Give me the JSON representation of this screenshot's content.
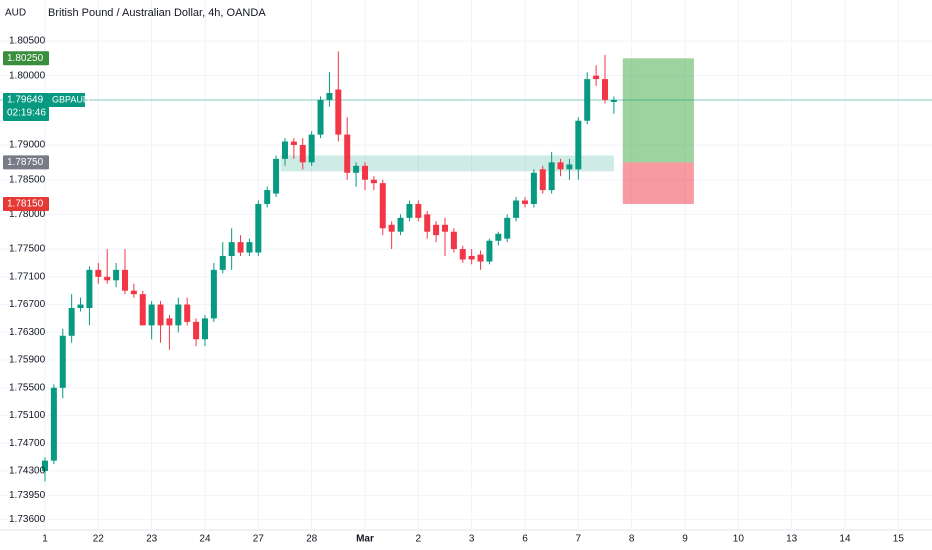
{
  "chart_data": {
    "type": "candlestick",
    "title": "British Pound / Australian Dollar, 4h, OANDA",
    "currency": "AUD",
    "symbol": "GBPAUD",
    "countdown": "02:19:46",
    "up_color": "#089981",
    "down_color": "#f23645",
    "ylim": [
      1.7345,
      1.8073
    ],
    "xlim": [
      -5.06,
      99
    ],
    "grid": true,
    "yticks": [
      {
        "value": 1.805,
        "label": "1.80500"
      },
      {
        "value": 1.8,
        "label": "1.80000"
      },
      {
        "value": 1.79,
        "label": "1.79000"
      },
      {
        "value": 1.785,
        "label": "1.78500"
      },
      {
        "value": 1.78,
        "label": "1.78000"
      },
      {
        "value": 1.775,
        "label": "1.77500"
      },
      {
        "value": 1.771,
        "label": "1.77100"
      },
      {
        "value": 1.767,
        "label": "1.76700"
      },
      {
        "value": 1.763,
        "label": "1.76300"
      },
      {
        "value": 1.759,
        "label": "1.75900"
      },
      {
        "value": 1.755,
        "label": "1.75500"
      },
      {
        "value": 1.751,
        "label": "1.75100"
      },
      {
        "value": 1.747,
        "label": "1.74700"
      },
      {
        "value": 1.743,
        "label": "1.74300"
      },
      {
        "value": 1.7395,
        "label": "1.73950"
      },
      {
        "value": 1.736,
        "label": "1.73600"
      }
    ],
    "xticks": [
      {
        "value": 0,
        "label": "1"
      },
      {
        "value": 6,
        "label": "22"
      },
      {
        "value": 12,
        "label": "23"
      },
      {
        "value": 18,
        "label": "24"
      },
      {
        "value": 24,
        "label": "27"
      },
      {
        "value": 30,
        "label": "28"
      },
      {
        "value": 36,
        "label": "Mar"
      },
      {
        "value": 42,
        "label": "2"
      },
      {
        "value": 48,
        "label": "3"
      },
      {
        "value": 54,
        "label": "6"
      },
      {
        "value": 60,
        "label": "7"
      },
      {
        "value": 66,
        "label": "8"
      },
      {
        "value": 72,
        "label": "9"
      },
      {
        "value": 78,
        "label": "10"
      },
      {
        "value": 84,
        "label": "13"
      },
      {
        "value": 90,
        "label": "14"
      },
      {
        "value": 96,
        "label": "15"
      }
    ],
    "candles": {
      "x": [
        0,
        1,
        2,
        3,
        4,
        5,
        6,
        7,
        8,
        9,
        10,
        11,
        12,
        13,
        14,
        15,
        16,
        17,
        18,
        19,
        20,
        21,
        22,
        23,
        24,
        25,
        26,
        27,
        28,
        29,
        30,
        31,
        32,
        33,
        34,
        35,
        36,
        37,
        38,
        39,
        40,
        41,
        42,
        43,
        44,
        45,
        46,
        47,
        48,
        49,
        50,
        51,
        52,
        53,
        54,
        55,
        56,
        57,
        58,
        59,
        60,
        61,
        62,
        63,
        64
      ],
      "open": [
        1.743,
        1.7445,
        1.755,
        1.7625,
        1.7665,
        1.7665,
        1.772,
        1.771,
        1.7705,
        1.772,
        1.769,
        1.7685,
        1.764,
        1.767,
        1.765,
        1.764,
        1.767,
        1.7645,
        1.762,
        1.765,
        1.772,
        1.774,
        1.776,
        1.7745,
        1.7745,
        1.7815,
        1.783,
        1.788,
        1.7905,
        1.79,
        1.7875,
        1.7915,
        1.7965,
        1.798,
        1.7915,
        1.786,
        1.787,
        1.785,
        1.7845,
        1.7785,
        1.7775,
        1.7795,
        1.7815,
        1.78,
        1.7785,
        1.7785,
        1.7775,
        1.775,
        1.774,
        1.7742,
        1.7732,
        1.7762,
        1.7765,
        1.7795,
        1.782,
        1.7815,
        1.7865,
        1.7835,
        1.7875,
        1.7865,
        1.7865,
        1.7935,
        1.8,
        1.7995,
        1.7962
      ],
      "high": [
        1.745,
        1.7555,
        1.7635,
        1.7685,
        1.768,
        1.7725,
        1.773,
        1.775,
        1.773,
        1.775,
        1.77,
        1.769,
        1.7675,
        1.7675,
        1.7655,
        1.768,
        1.768,
        1.765,
        1.7655,
        1.773,
        1.776,
        1.778,
        1.777,
        1.7765,
        1.782,
        1.784,
        1.7885,
        1.791,
        1.791,
        1.791,
        1.792,
        1.797,
        1.8005,
        1.8035,
        1.794,
        1.7875,
        1.7875,
        1.7855,
        1.785,
        1.779,
        1.78,
        1.782,
        1.782,
        1.7805,
        1.779,
        1.7795,
        1.778,
        1.7755,
        1.775,
        1.7748,
        1.7765,
        1.7775,
        1.78,
        1.7825,
        1.7825,
        1.7865,
        1.787,
        1.789,
        1.788,
        1.788,
        1.794,
        1.8005,
        1.8015,
        1.803,
        1.797
      ],
      "low": [
        1.7415,
        1.744,
        1.7535,
        1.7615,
        1.766,
        1.764,
        1.77,
        1.77,
        1.7695,
        1.7685,
        1.768,
        1.764,
        1.762,
        1.7615,
        1.7605,
        1.763,
        1.764,
        1.761,
        1.761,
        1.7645,
        1.7715,
        1.772,
        1.774,
        1.774,
        1.774,
        1.781,
        1.7825,
        1.787,
        1.788,
        1.7865,
        1.787,
        1.791,
        1.7955,
        1.7905,
        1.785,
        1.784,
        1.7835,
        1.7835,
        1.777,
        1.775,
        1.777,
        1.779,
        1.779,
        1.7765,
        1.776,
        1.774,
        1.7745,
        1.773,
        1.7728,
        1.772,
        1.7728,
        1.7755,
        1.776,
        1.779,
        1.781,
        1.781,
        1.783,
        1.783,
        1.7855,
        1.785,
        1.785,
        1.793,
        1.7985,
        1.796,
        1.7945
      ],
      "close": [
        1.7445,
        1.755,
        1.7625,
        1.7665,
        1.767,
        1.772,
        1.771,
        1.7705,
        1.772,
        1.769,
        1.7685,
        1.764,
        1.767,
        1.764,
        1.764,
        1.767,
        1.7645,
        1.762,
        1.765,
        1.772,
        1.774,
        1.776,
        1.7745,
        1.776,
        1.7815,
        1.7835,
        1.788,
        1.7905,
        1.79,
        1.7875,
        1.7915,
        1.7965,
        1.7975,
        1.7915,
        1.786,
        1.787,
        1.785,
        1.7845,
        1.778,
        1.7775,
        1.7795,
        1.7815,
        1.7795,
        1.7775,
        1.777,
        1.7775,
        1.775,
        1.7735,
        1.7735,
        1.7732,
        1.7762,
        1.7772,
        1.7795,
        1.782,
        1.7815,
        1.786,
        1.7835,
        1.7875,
        1.7865,
        1.7872,
        1.7935,
        1.7995,
        1.7995,
        1.7965,
        1.7965
      ]
    },
    "zone": {
      "x": [
        26.5,
        64
      ],
      "top": 1.7885,
      "bottom": 1.7862
    },
    "position": {
      "x": [
        65,
        73
      ],
      "target": 1.8025,
      "entry": 1.7875,
      "stop": 1.7815
    },
    "last_price": {
      "value": 1.79649,
      "label": "1.79649"
    },
    "price_labels": [
      {
        "value": 1.8025,
        "label": "1.80250",
        "color": "#388e3c"
      },
      {
        "value": 1.7875,
        "label": "1.78750",
        "color": "#787b86"
      },
      {
        "value": 1.7815,
        "label": "1.78150",
        "color": "#e53935"
      }
    ]
  }
}
